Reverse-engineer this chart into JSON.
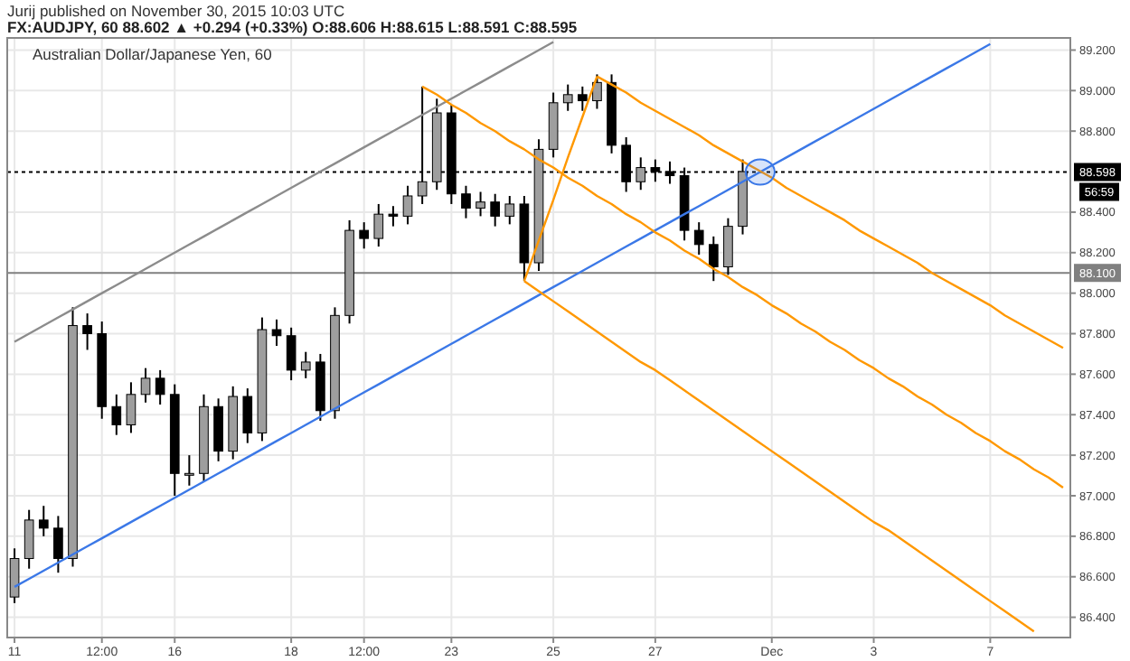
{
  "chart_data": {
    "type": "candlestick",
    "title": "Australian Dollar/Japanese Yen, 60",
    "subtitle": "FX:AUDJPY, 60 88.602 ▲ +0.294 (+0.33%) O:88.606 H:88.615 L:88.591 C:88.595",
    "annotations": [
      "Jurij published on November 30, 2015 10:03 UTC",
      "56:59"
    ],
    "categories": [
      "11",
      null,
      null,
      null,
      null,
      null,
      "12:00",
      null,
      null,
      null,
      null,
      "16",
      null,
      null,
      null,
      null,
      null,
      null,
      null,
      "18",
      null,
      null,
      null,
      null,
      "12:00",
      null,
      null,
      null,
      null,
      null,
      "23",
      null,
      null,
      null,
      null,
      null,
      null,
      "25",
      null,
      null,
      null,
      null,
      null,
      null,
      "27",
      null,
      null,
      null,
      null,
      null,
      null,
      null,
      "Dec",
      null,
      null,
      null,
      null,
      null,
      null,
      "3",
      null,
      null,
      null,
      null,
      null,
      null,
      null,
      "7",
      null,
      null,
      null,
      null,
      null
    ],
    "ohlc": [
      [
        86.5,
        86.74,
        86.47,
        86.69
      ],
      [
        86.69,
        86.93,
        86.64,
        86.88
      ],
      [
        86.88,
        86.95,
        86.8,
        86.84
      ],
      [
        86.84,
        86.9,
        86.62,
        86.69
      ],
      [
        86.69,
        87.93,
        86.65,
        87.84
      ],
      [
        87.84,
        87.9,
        87.72,
        87.8
      ],
      [
        87.8,
        87.86,
        87.38,
        87.44
      ],
      [
        87.44,
        87.5,
        87.3,
        87.35
      ],
      [
        87.35,
        87.56,
        87.31,
        87.5
      ],
      [
        87.5,
        87.63,
        87.46,
        87.58
      ],
      [
        87.58,
        87.62,
        87.45,
        87.5
      ],
      [
        87.5,
        87.55,
        87.0,
        87.11
      ],
      [
        87.11,
        87.2,
        87.05,
        87.11
      ],
      [
        87.11,
        87.5,
        87.07,
        87.44
      ],
      [
        87.44,
        87.48,
        87.17,
        87.22
      ],
      [
        87.22,
        87.54,
        87.18,
        87.49
      ],
      [
        87.49,
        87.53,
        87.26,
        87.31
      ],
      [
        87.31,
        87.88,
        87.27,
        87.82
      ],
      [
        87.82,
        87.87,
        87.74,
        87.79
      ],
      [
        87.79,
        87.83,
        87.57,
        87.62
      ],
      [
        87.62,
        87.71,
        87.58,
        87.66
      ],
      [
        87.66,
        87.7,
        87.37,
        87.42
      ],
      [
        87.42,
        87.93,
        87.38,
        87.89
      ],
      [
        87.89,
        88.36,
        87.85,
        88.31
      ],
      [
        88.31,
        88.35,
        88.22,
        88.27
      ],
      [
        88.27,
        88.44,
        88.23,
        88.39
      ],
      [
        88.39,
        88.43,
        88.33,
        88.38
      ],
      [
        88.38,
        88.53,
        88.34,
        88.48
      ],
      [
        88.48,
        89.02,
        88.44,
        88.55
      ],
      [
        88.55,
        88.96,
        88.51,
        88.89
      ],
      [
        88.89,
        88.93,
        88.44,
        88.49
      ],
      [
        88.49,
        88.53,
        88.37,
        88.42
      ],
      [
        88.42,
        88.5,
        88.38,
        88.45
      ],
      [
        88.45,
        88.49,
        88.33,
        88.38
      ],
      [
        88.38,
        88.48,
        88.34,
        88.44
      ],
      [
        88.44,
        88.48,
        88.06,
        88.15
      ],
      [
        88.15,
        88.76,
        88.11,
        88.71
      ],
      [
        88.71,
        88.99,
        88.67,
        88.94
      ],
      [
        88.94,
        89.03,
        88.9,
        88.98
      ],
      [
        88.98,
        89.02,
        88.9,
        88.95
      ],
      [
        88.95,
        89.08,
        88.91,
        89.04
      ],
      [
        89.04,
        89.08,
        88.69,
        88.73
      ],
      [
        88.73,
        88.77,
        88.5,
        88.55
      ],
      [
        88.55,
        88.67,
        88.51,
        88.62
      ],
      [
        88.62,
        88.66,
        88.55,
        88.6
      ],
      [
        88.6,
        88.65,
        88.54,
        88.58
      ],
      [
        88.58,
        88.62,
        88.26,
        88.31
      ],
      [
        88.31,
        88.35,
        88.19,
        88.24
      ],
      [
        88.24,
        88.28,
        88.06,
        88.13
      ],
      [
        88.13,
        88.37,
        88.09,
        88.33
      ],
      [
        88.33,
        88.66,
        88.29,
        88.6
      ],
      null,
      null,
      null,
      null,
      null,
      null,
      null,
      null,
      null,
      null,
      null,
      null,
      null,
      null,
      null,
      null,
      null,
      null,
      null,
      null,
      null,
      null
    ],
    "series": [
      {
        "type": "line",
        "color": "#3b78e7",
        "values": [
          86.55,
          86.59,
          86.63,
          86.67,
          86.71,
          86.75,
          86.79,
          86.83,
          86.87,
          86.91,
          86.95,
          86.99,
          87.03,
          87.07,
          87.11,
          87.15,
          87.19,
          87.23,
          87.27,
          87.31,
          87.35,
          87.39,
          87.43,
          87.47,
          87.51,
          87.55,
          87.59,
          87.63,
          87.67,
          87.71,
          87.75,
          87.79,
          87.83,
          87.87,
          87.91,
          87.95,
          87.99,
          88.03,
          88.07,
          88.11,
          88.15,
          88.19,
          88.23,
          88.27,
          88.31,
          88.35,
          88.39,
          88.43,
          88.47,
          88.51,
          88.55,
          88.59,
          88.63,
          88.67,
          88.71,
          88.75,
          88.79,
          88.83,
          88.87,
          88.91,
          88.95,
          88.99,
          89.03,
          89.07,
          89.11,
          89.15,
          89.19,
          89.23,
          null,
          null,
          null,
          null,
          null
        ]
      },
      {
        "type": "line",
        "color": "#8c8c8c",
        "values": [
          87.76,
          87.8,
          87.84,
          87.88,
          87.92,
          87.96,
          88.0,
          88.04,
          88.08,
          88.12,
          88.16,
          88.2,
          88.24,
          88.28,
          88.32,
          88.36,
          88.4,
          88.44,
          88.48,
          88.52,
          88.56,
          88.6,
          88.64,
          88.68,
          88.72,
          88.76,
          88.8,
          88.84,
          88.88,
          88.92,
          88.96,
          89.0,
          89.04,
          89.08,
          89.12,
          89.16,
          89.2,
          89.24,
          null,
          null,
          null,
          null,
          null,
          null,
          null,
          null,
          null,
          null,
          null,
          null,
          null,
          null,
          null,
          null,
          null,
          null,
          null,
          null,
          null,
          null,
          null,
          null,
          null,
          null,
          null,
          null,
          null,
          null,
          null,
          null,
          null,
          null,
          null
        ]
      },
      {
        "type": "line",
        "color": "#ff9800",
        "values": [
          null,
          null,
          null,
          null,
          null,
          null,
          null,
          null,
          null,
          null,
          null,
          null,
          null,
          null,
          null,
          null,
          null,
          null,
          null,
          null,
          null,
          null,
          null,
          null,
          null,
          null,
          null,
          null,
          null,
          null,
          null,
          null,
          null,
          null,
          null,
          null,
          null,
          null,
          null,
          null,
          89.07,
          89.03,
          88.99,
          88.94,
          88.9,
          88.86,
          88.82,
          88.78,
          88.73,
          88.69,
          88.65,
          88.61,
          88.57,
          88.52,
          88.48,
          88.44,
          88.4,
          88.36,
          88.31,
          88.27,
          88.23,
          88.19,
          88.15,
          88.1,
          88.06,
          88.02,
          87.98,
          87.94,
          87.89,
          87.85,
          87.81,
          87.77,
          87.73
        ]
      },
      {
        "type": "line",
        "color": "#ff9800",
        "values": [
          null,
          null,
          null,
          null,
          null,
          null,
          null,
          null,
          null,
          null,
          null,
          null,
          null,
          null,
          null,
          null,
          null,
          null,
          null,
          null,
          null,
          null,
          null,
          null,
          null,
          null,
          null,
          null,
          89.02,
          88.98,
          88.93,
          88.89,
          88.84,
          88.8,
          88.75,
          88.71,
          88.66,
          88.62,
          88.57,
          88.53,
          88.48,
          88.44,
          88.39,
          88.35,
          88.3,
          88.26,
          88.21,
          88.17,
          88.12,
          88.08,
          88.03,
          87.99,
          87.94,
          87.9,
          87.85,
          87.81,
          87.76,
          87.72,
          87.67,
          87.63,
          87.58,
          87.54,
          87.49,
          87.45,
          87.4,
          87.36,
          87.31,
          87.27,
          87.22,
          87.18,
          87.13,
          87.09,
          87.04
        ]
      },
      {
        "type": "line",
        "color": "#ff9800",
        "values": [
          null,
          null,
          null,
          null,
          null,
          null,
          null,
          null,
          null,
          null,
          null,
          null,
          null,
          null,
          null,
          null,
          null,
          null,
          null,
          null,
          null,
          null,
          null,
          null,
          null,
          null,
          null,
          null,
          null,
          null,
          null,
          null,
          null,
          null,
          null,
          88.06,
          88.01,
          87.96,
          87.91,
          87.86,
          87.81,
          87.76,
          87.71,
          87.66,
          87.62,
          87.57,
          87.52,
          87.47,
          87.42,
          87.37,
          87.32,
          87.27,
          87.22,
          87.17,
          87.12,
          87.07,
          87.02,
          86.97,
          86.92,
          86.87,
          86.83,
          86.78,
          86.73,
          86.68,
          86.63,
          86.58,
          86.53,
          86.48,
          86.43,
          86.38,
          86.33,
          null,
          null
        ]
      },
      {
        "type": "line",
        "color": "#ff9800",
        "values": [
          null,
          null,
          null,
          null,
          null,
          null,
          null,
          null,
          null,
          null,
          null,
          null,
          null,
          null,
          null,
          null,
          null,
          null,
          null,
          null,
          null,
          null,
          null,
          null,
          null,
          null,
          null,
          null,
          null,
          null,
          null,
          null,
          null,
          null,
          null,
          88.06,
          88.26,
          88.46,
          88.67,
          88.87,
          89.07,
          null,
          null,
          null,
          null,
          null,
          null,
          null,
          null,
          null,
          null,
          null,
          null,
          null,
          null,
          null,
          null,
          null,
          null,
          null,
          null,
          null,
          null,
          null,
          null,
          null,
          null,
          null,
          null,
          null,
          null,
          null,
          null
        ]
      }
    ],
    "ref_lines": [
      {
        "axis": "y",
        "value": 88.598,
        "label": "88.598",
        "color": "#000000",
        "line_style": "dotted"
      },
      {
        "axis": "y",
        "value": 88.1,
        "label": "88.100",
        "color": "#808080",
        "line_style": "solid"
      }
    ],
    "ylim": [
      86.3,
      89.26
    ],
    "yticks": [
      {
        "value": 86.4,
        "label": "86.400"
      },
      {
        "value": 86.6,
        "label": "86.600"
      },
      {
        "value": 86.8,
        "label": "86.800"
      },
      {
        "value": 87.0,
        "label": "87.000"
      },
      {
        "value": 87.2,
        "label": "87.200"
      },
      {
        "value": 87.4,
        "label": "87.400"
      },
      {
        "value": 87.6,
        "label": "87.600"
      },
      {
        "value": 87.8,
        "label": "87.800"
      },
      {
        "value": 88.0,
        "label": "88.000"
      },
      {
        "value": 88.2,
        "label": "88.200"
      },
      {
        "value": 88.4,
        "label": "88.400"
      },
      {
        "value": 88.8,
        "label": "88.800"
      },
      {
        "value": 89.0,
        "label": "89.000"
      },
      {
        "value": 89.2,
        "label": "89.200"
      }
    ],
    "grid": true
  }
}
